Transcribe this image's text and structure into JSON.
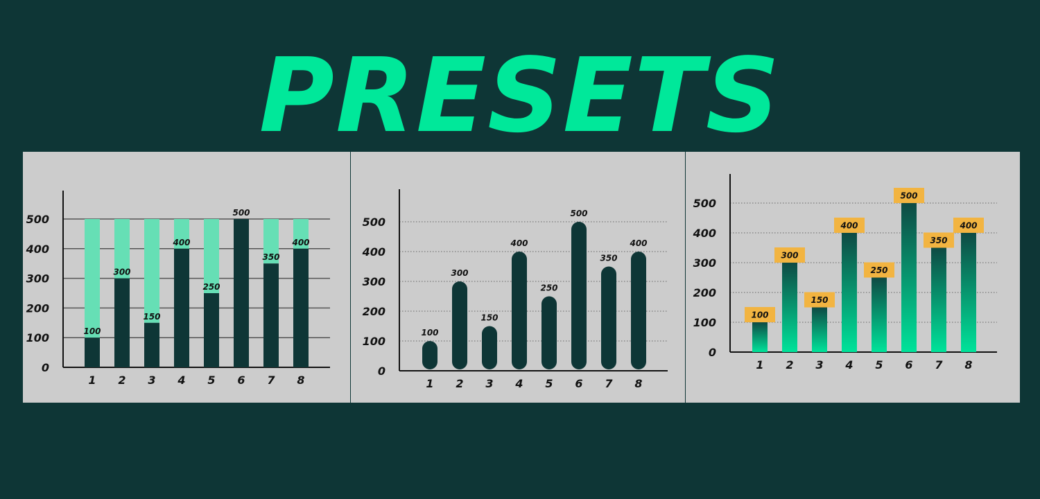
{
  "title": "PRESETS",
  "colors": {
    "background": "#0e3636",
    "title": "#00e89a",
    "panel": "#cccccc",
    "bar_dark": "#0e3636",
    "bar_light": "#66dfb5",
    "gradient_top": "#0e4a44",
    "gradient_bottom": "#00e39a",
    "badge": "#f2b441"
  },
  "chart_data": [
    {
      "type": "bar",
      "style": "stacked-against-max",
      "categories": [
        "1",
        "2",
        "3",
        "4",
        "5",
        "6",
        "7",
        "8"
      ],
      "values": [
        100,
        300,
        150,
        400,
        250,
        500,
        350,
        400
      ],
      "max_value": 500,
      "ylim": [
        0,
        500
      ],
      "yticks": [
        "0",
        "100",
        "200",
        "300",
        "400",
        "500"
      ],
      "grid": true,
      "title": "",
      "xlabel": "",
      "ylabel": ""
    },
    {
      "type": "bar",
      "style": "rounded",
      "categories": [
        "1",
        "2",
        "3",
        "4",
        "5",
        "6",
        "7",
        "8"
      ],
      "values": [
        100,
        300,
        150,
        400,
        250,
        500,
        350,
        400
      ],
      "ylim": [
        0,
        500
      ],
      "yticks": [
        "0",
        "100",
        "200",
        "300",
        "400",
        "500"
      ],
      "grid": "dotted",
      "title": "",
      "xlabel": "",
      "ylabel": ""
    },
    {
      "type": "bar",
      "style": "gradient-with-badges",
      "categories": [
        "1",
        "2",
        "3",
        "4",
        "5",
        "6",
        "7",
        "8"
      ],
      "values": [
        100,
        300,
        150,
        400,
        250,
        500,
        350,
        400
      ],
      "ylim": [
        0,
        500
      ],
      "yticks": [
        "0",
        "100",
        "200",
        "300",
        "400",
        "500"
      ],
      "grid": "dotted",
      "title": "",
      "xlabel": "",
      "ylabel": ""
    }
  ]
}
